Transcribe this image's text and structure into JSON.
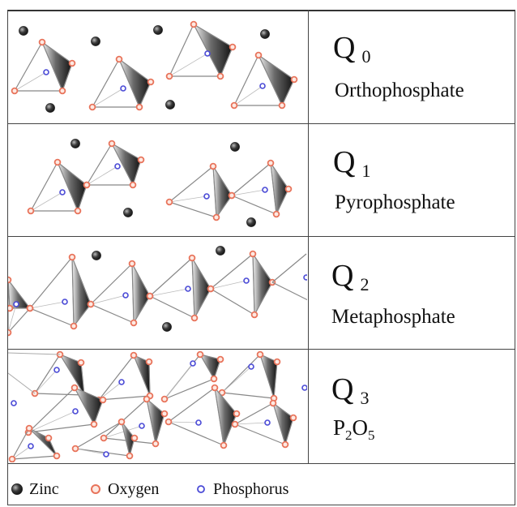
{
  "rows": [
    {
      "q_label": "Q",
      "q_sub": "0",
      "name": "Orthophosphate"
    },
    {
      "q_label": "Q",
      "q_sub": "1",
      "name": "Pyrophosphate"
    },
    {
      "q_label": "Q",
      "q_sub": "2",
      "name": "Metaphosphate"
    },
    {
      "q_label": "Q",
      "q_sub": "3",
      "formula": {
        "a": "P",
        "a_sub": "2",
        "b": "O",
        "b_sub": "5"
      }
    }
  ],
  "legend": [
    {
      "label": "Zinc",
      "icon": "zinc-atom-icon"
    },
    {
      "label": "Oxygen",
      "icon": "oxygen-atom-icon"
    },
    {
      "label": "Phosphorus",
      "icon": "phosphorus-atom-icon"
    }
  ],
  "colors": {
    "zinc": "#2b2b2b",
    "oxygen": "#e8735a",
    "phosphorus": "#4a4ad6",
    "border": "#444444",
    "bond": "#888888"
  }
}
